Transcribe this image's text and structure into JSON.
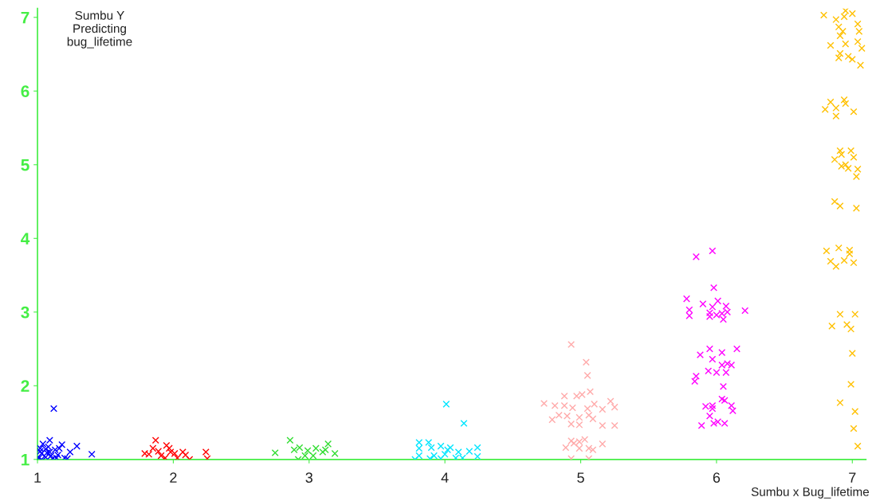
{
  "chart_data": {
    "type": "scatter",
    "ylabel": "Sumbu Y\nPredicting\nbug_lifetime",
    "xlabel": "Sumbu x Bug_lifetime",
    "xlim": [
      1,
      7.1
    ],
    "ylim": [
      1,
      7.12
    ],
    "xticks": [
      1,
      2,
      3,
      4,
      5,
      6,
      7
    ],
    "yticks": [
      1,
      2,
      3,
      4,
      5,
      6,
      7
    ],
    "marker": "cross",
    "grid": false,
    "legend": false,
    "series": [
      {
        "color": "#0000ff",
        "x": [
          1.12,
          1.4,
          1.29,
          1.24,
          1.09,
          1.18,
          1.02,
          1.03,
          1.05,
          1.06,
          1.08,
          1.1,
          1.04,
          1.01,
          1.07,
          1.13,
          1.15,
          1.11,
          1.2,
          1.16,
          1.03,
          1.09,
          1.14,
          1.02,
          1.06,
          1.22
        ],
        "values": [
          1.69,
          1.07,
          1.18,
          1.1,
          1.26,
          1.2,
          1.15,
          1.08,
          null,
          1.03,
          1.17,
          1.05,
          1.21,
          1.02,
          1.09,
          1.13,
          1.06,
          1.01,
          1.02,
          1.15,
          1.0,
          1.1,
          1.02,
          1.11,
          1.14,
          1.01
        ]
      },
      {
        "color": "#ff0000",
        "x": [
          1.87,
          1.85,
          1.95,
          1.97,
          1.79,
          2.07,
          2.12,
          2.24,
          2.25,
          1.91,
          2.01,
          1.94,
          1.89,
          2.03,
          2.09,
          1.98,
          1.82
        ],
        "values": [
          1.26,
          1.15,
          1.19,
          1.15,
          1.08,
          1.1,
          1.0,
          1.1,
          1.01,
          1.05,
          1.08,
          1.02,
          1.11,
          1.02,
          1.06,
          1.1,
          1.07
        ]
      },
      {
        "color": "#33dd33",
        "x": [
          2.86,
          2.75,
          2.93,
          3.05,
          3.14,
          3.19,
          2.97,
          2.92,
          2.99,
          3.1,
          2.89,
          3.03,
          3.12
        ],
        "values": [
          1.26,
          1.09,
          1.16,
          1.15,
          1.21,
          1.08,
          1.05,
          1.0,
          1.12,
          1.1,
          1.13,
          1.05,
          1.13
        ]
      },
      {
        "color": "#00e5ff",
        "x": [
          4.01,
          4.14,
          3.81,
          3.88,
          3.81,
          3.9,
          3.97,
          4.04,
          4.24,
          3.81,
          3.78,
          3.92,
          4.0,
          4.1,
          4.18,
          4.24,
          3.89,
          4.08,
          3.97,
          4.13,
          4.02
        ],
        "values": [
          1.75,
          1.49,
          1.23,
          1.23,
          1.15,
          1.16,
          1.18,
          1.16,
          1.16,
          1.05,
          1.0,
          1.05,
          1.07,
          1.1,
          1.11,
          1.04,
          1.01,
          1.02,
          1.01,
          1.02,
          1.13
        ]
      },
      {
        "color": "#ffaaaa",
        "x": [
          4.93,
          5.04,
          5.05,
          5.07,
          4.88,
          4.97,
          5.01,
          4.73,
          4.81,
          4.88,
          4.94,
          5.05,
          5.1,
          5.22,
          5.25,
          5.16,
          4.84,
          4.9,
          4.99,
          5.06,
          5.09,
          4.79,
          4.93,
          4.99,
          5.16,
          5.25,
          4.93,
          4.99,
          5.03,
          5.16,
          4.89,
          4.99,
          5.06,
          5.09,
          4.93,
          5.06,
          4.95
        ],
        "values": [
          2.56,
          2.32,
          2.14,
          1.92,
          1.86,
          1.86,
          1.88,
          1.76,
          1.73,
          1.73,
          1.7,
          1.69,
          1.75,
          1.79,
          1.71,
          1.68,
          1.6,
          1.59,
          1.57,
          1.6,
          1.55,
          1.54,
          1.48,
          1.47,
          1.46,
          1.46,
          1.25,
          1.24,
          1.27,
          1.21,
          1.16,
          1.15,
          1.15,
          1.13,
          1.01,
          1.01,
          1.22
        ]
      },
      {
        "color": "#ff00ff",
        "x": [
          5.97,
          5.85,
          5.98,
          5.78,
          5.9,
          6.01,
          5.8,
          6.07,
          5.97,
          5.95,
          6.08,
          6.21,
          5.8,
          5.95,
          6.0,
          6.05,
          6.04,
          5.95,
          5.88,
          6.15,
          6.04,
          5.97,
          6.04,
          6.08,
          6.11,
          5.94,
          6.0,
          6.07,
          5.85,
          5.84,
          6.05,
          6.04,
          6.06,
          5.92,
          5.97,
          6.11,
          6.12,
          5.97,
          5.95,
          5.98,
          6.01,
          6.06,
          5.89
        ],
        "values": [
          3.83,
          3.75,
          3.33,
          3.18,
          3.11,
          3.15,
          3.03,
          3.08,
          3.07,
          2.99,
          3.0,
          3.02,
          2.95,
          2.94,
          2.96,
          2.9,
          2.98,
          2.5,
          2.42,
          2.5,
          2.45,
          2.36,
          2.28,
          2.3,
          2.28,
          2.2,
          2.18,
          2.18,
          2.13,
          2.06,
          1.99,
          1.82,
          1.8,
          1.72,
          1.73,
          1.73,
          1.66,
          1.69,
          1.59,
          1.49,
          1.51,
          1.49,
          1.46
        ]
      },
      {
        "color": "#ffc000",
        "x": [
          6.79,
          6.95,
          7.0,
          6.88,
          6.94,
          7.04,
          7.05,
          6.9,
          6.93,
          6.91,
          6.95,
          6.84,
          7.04,
          7.07,
          6.91,
          6.9,
          6.97,
          7.0,
          7.06,
          6.84,
          6.94,
          6.95,
          6.8,
          6.88,
          7.01,
          6.88,
          6.91,
          6.99,
          6.92,
          6.87,
          7.01,
          6.95,
          6.92,
          6.97,
          7.04,
          7.03,
          6.87,
          6.91,
          7.03,
          6.81,
          6.9,
          6.98,
          6.98,
          6.84,
          6.88,
          6.94,
          7.01,
          6.91,
          7.02,
          6.85,
          6.96,
          6.99,
          7.0,
          6.99,
          6.91,
          7.02,
          7.01,
          7.04
        ],
        "values": [
          7.03,
          7.09,
          7.05,
          6.97,
          7.01,
          6.91,
          6.81,
          6.87,
          6.81,
          6.75,
          6.64,
          6.62,
          6.67,
          6.58,
          6.51,
          6.45,
          6.47,
          6.43,
          6.35,
          5.85,
          5.88,
          5.83,
          5.75,
          5.77,
          5.72,
          5.66,
          5.19,
          5.19,
          5.14,
          5.07,
          5.1,
          5.0,
          4.98,
          4.95,
          4.94,
          4.84,
          4.5,
          4.44,
          4.41,
          3.83,
          3.87,
          3.84,
          3.79,
          3.69,
          3.62,
          3.7,
          3.67,
          2.97,
          2.97,
          2.81,
          2.83,
          2.77,
          2.44,
          2.02,
          1.77,
          1.65,
          1.42,
          1.18
        ]
      }
    ]
  }
}
